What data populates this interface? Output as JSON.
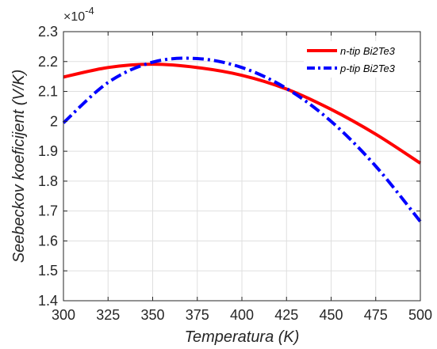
{
  "chart_data": {
    "type": "line",
    "title": "",
    "xlabel": "Temperatura (K)",
    "ylabel": "Seebeckov koeficijent (V/K)",
    "xlim": [
      300,
      500
    ],
    "ylim": [
      1.4,
      2.3
    ],
    "xticks": [
      300,
      325,
      350,
      375,
      400,
      425,
      450,
      475,
      500
    ],
    "yticks": [
      1.4,
      1.5,
      1.6,
      1.7,
      1.8,
      1.9,
      2,
      2.1,
      2.2,
      2.3
    ],
    "y_scale_multiplier": "×10",
    "y_scale_exponent": "-4",
    "grid": true,
    "legend_position": "top-right",
    "x": [
      300,
      325,
      350,
      375,
      400,
      425,
      450,
      475,
      500
    ],
    "series": [
      {
        "name": "n-tip Bi2Te3",
        "color": "#ff0000",
        "style": "solid",
        "values": [
          2.148,
          2.18,
          2.191,
          2.18,
          2.154,
          2.108,
          2.04,
          1.957,
          1.86
        ]
      },
      {
        "name": "p-tip Bi2Te3",
        "color": "#0000ff",
        "style": "dashdot",
        "values": [
          1.995,
          2.13,
          2.198,
          2.21,
          2.18,
          2.11,
          2.0,
          1.85,
          1.665
        ]
      }
    ]
  }
}
